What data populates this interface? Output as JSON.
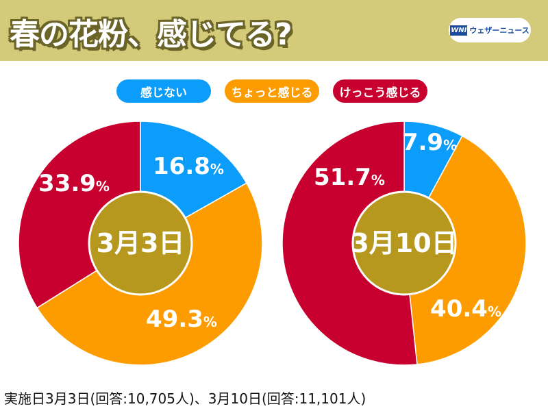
{
  "header": {
    "title": "春の花粉、感じてる?",
    "logo_mark": "WNI",
    "logo_text": "ウェザーニュース"
  },
  "colors": {
    "none": "#0c9dfa",
    "little": "#fd9c00",
    "much": "#c8002f",
    "center": "#b5981d",
    "header": "#d4cb7a"
  },
  "chart_data": {
    "type": "pie",
    "legend": [
      "感じない",
      "ちょっと感じる",
      "けっこう感じる"
    ],
    "legend_placement": "top-center",
    "charts": [
      {
        "center_label": "3月3日",
        "values": [
          16.8,
          49.3,
          33.9
        ],
        "labels": [
          "16.8",
          "49.3",
          "33.9"
        ]
      },
      {
        "center_label": "3月10日",
        "values": [
          7.9,
          40.4,
          51.7
        ],
        "labels": [
          "7.9",
          "40.4",
          "51.7"
        ]
      }
    ],
    "unit": "%"
  },
  "footer": "実施日3月3日(回答:10,705人)、3月10日(回答:11,101人)"
}
